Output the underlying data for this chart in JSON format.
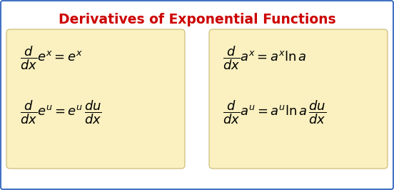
{
  "title": "Derivatives of Exponential Functions",
  "title_color": "#CC0000",
  "title_fontsize": 13.5,
  "bg_color": "#FFFFFF",
  "box_color": "#FAF0C0",
  "box_edge_color": "#C8B870",
  "outer_border_color": "#4472C4",
  "formula_fontsize": 13,
  "formula_color": "#000000",
  "left_formula_top": "$\\dfrac{d}{dx}e^x = e^x$",
  "left_formula_bot": "$\\dfrac{d}{dx}e^u = e^u\\,\\dfrac{du}{dx}$",
  "right_formula_top": "$\\dfrac{d}{dx}a^x = a^x \\ln a$",
  "right_formula_bot": "$\\dfrac{d}{dx}a^u = a^u \\ln a\\,\\dfrac{du}{dx}$"
}
